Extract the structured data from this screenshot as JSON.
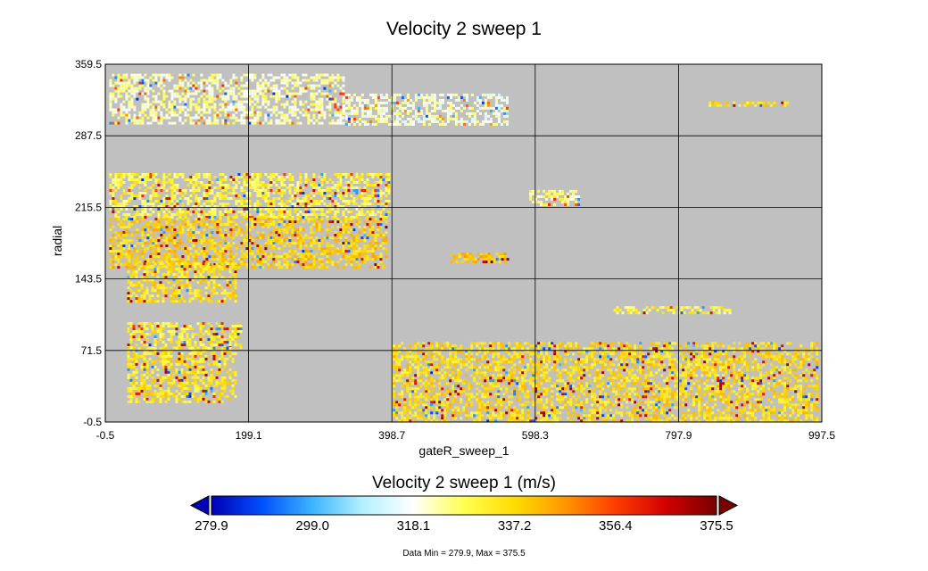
{
  "chart_data": {
    "type": "heatmap",
    "title": "Velocity 2 sweep 1",
    "xlabel": "gateR_sweep_1",
    "ylabel": "radial",
    "xlim": [
      -0.5,
      997.5
    ],
    "ylim": [
      -0.5,
      359.5
    ],
    "x_ticks": [
      "-0.5",
      "199.1",
      "398.7",
      "598.3",
      "797.9",
      "997.5"
    ],
    "y_ticks": [
      "359.5",
      "287.5",
      "215.5",
      "143.5",
      "71.5",
      "-0.5"
    ],
    "grid": true,
    "background_color": "#c0c0c0",
    "colorbar": {
      "title": "Velocity 2 sweep 1 (m/s)",
      "min": 279.9,
      "max": 375.5,
      "ticks": [
        "279.9",
        "299.0",
        "318.1",
        "337.2",
        "356.4",
        "375.5"
      ],
      "colormap": [
        "#0000b4",
        "#0050ff",
        "#3cb4ff",
        "#b4f0ff",
        "#ffffff",
        "#ffff50",
        "#ffdc00",
        "#ff9600",
        "#ff3c00",
        "#d20000",
        "#780000"
      ]
    },
    "regions": [
      {
        "x": [
          5,
          330
        ],
        "y": [
          300,
          350
        ],
        "value": 322
      },
      {
        "x": [
          330,
          560
        ],
        "y": [
          300,
          330
        ],
        "value": 320
      },
      {
        "x": [
          5,
          395
        ],
        "y": [
          205,
          250
        ],
        "value": 330
      },
      {
        "x": [
          5,
          390
        ],
        "y": [
          155,
          205
        ],
        "value": 338
      },
      {
        "x": [
          30,
          180
        ],
        "y": [
          120,
          160
        ],
        "value": 335
      },
      {
        "x": [
          30,
          190
        ],
        "y": [
          75,
          100
        ],
        "value": 332
      },
      {
        "x": [
          30,
          180
        ],
        "y": [
          20,
          75
        ],
        "value": 334
      },
      {
        "x": [
          480,
          560
        ],
        "y": [
          160,
          170
        ],
        "value": 340
      },
      {
        "x": [
          590,
          660
        ],
        "y": [
          218,
          233
        ],
        "value": 326
      },
      {
        "x": [
          700,
          870
        ],
        "y": [
          108,
          116
        ],
        "value": 330
      },
      {
        "x": [
          400,
          990
        ],
        "y": [
          0,
          80
        ],
        "value": 336
      },
      {
        "x": [
          840,
          950
        ],
        "y": [
          318,
          322
        ],
        "value": 335
      }
    ],
    "stats": "Data Min = 279.9, Max = 375.5"
  }
}
